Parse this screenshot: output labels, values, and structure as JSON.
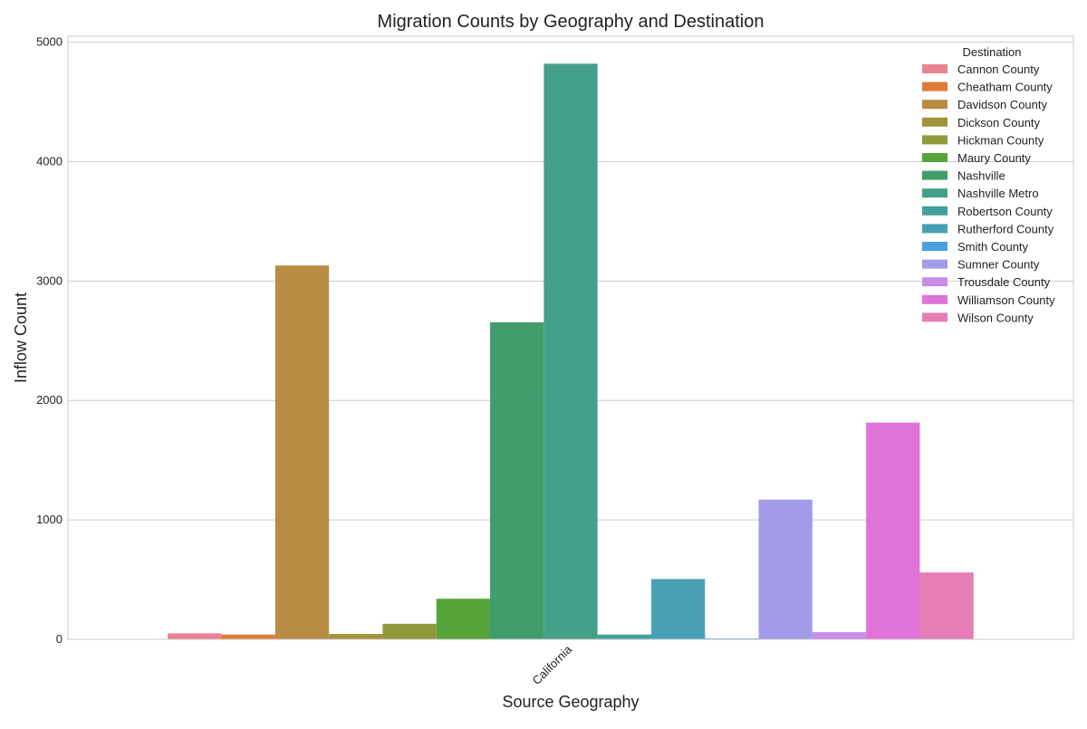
{
  "chart_data": {
    "type": "bar",
    "title": "Migration Counts by Geography and Destination",
    "xlabel": "Source Geography",
    "ylabel": "Inflow Count",
    "categories": [
      "California"
    ],
    "ylim": [
      0,
      5050
    ],
    "yticks": [
      0,
      1000,
      2000,
      3000,
      4000,
      5000
    ],
    "grid": true,
    "legend": {
      "title": "Destination",
      "position": "top-right"
    },
    "series": [
      {
        "name": "Cannon County",
        "color": "#e8828f",
        "values": [
          50
        ]
      },
      {
        "name": "Cheatham County",
        "color": "#e0783a",
        "values": [
          40
        ]
      },
      {
        "name": "Davidson County",
        "color": "#b88c42",
        "values": [
          3130
        ]
      },
      {
        "name": "Dickson County",
        "color": "#a39237",
        "values": [
          45
        ]
      },
      {
        "name": "Hickman County",
        "color": "#8e9a3c",
        "values": [
          130
        ]
      },
      {
        "name": "Maury County",
        "color": "#57a43b",
        "values": [
          340
        ]
      },
      {
        "name": "Nashville",
        "color": "#3f9e6c",
        "values": [
          2655
        ]
      },
      {
        "name": "Nashville Metro",
        "color": "#45a08a",
        "values": [
          4820
        ]
      },
      {
        "name": "Robertson County",
        "color": "#42a09c",
        "values": [
          40
        ]
      },
      {
        "name": "Rutherford County",
        "color": "#48a0b5",
        "values": [
          505
        ]
      },
      {
        "name": "Smith County",
        "color": "#4c9fe0",
        "values": [
          8
        ]
      },
      {
        "name": "Sumner County",
        "color": "#a29ce8",
        "values": [
          1170
        ]
      },
      {
        "name": "Trousdale County",
        "color": "#c98de6",
        "values": [
          60
        ]
      },
      {
        "name": "Williamson County",
        "color": "#e073d9",
        "values": [
          1815
        ]
      },
      {
        "name": "Wilson County",
        "color": "#e67eb6",
        "values": [
          560
        ]
      }
    ]
  }
}
